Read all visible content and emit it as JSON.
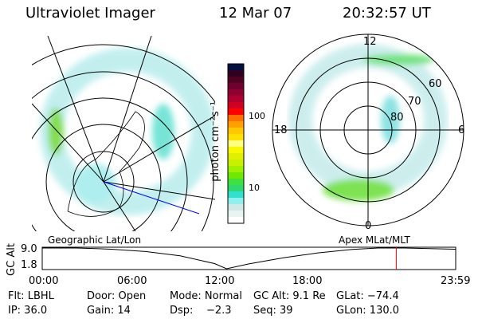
{
  "header": {
    "title": "Ultraviolet Imager",
    "date": "12 Mar 07",
    "time": "20:32:57 UT"
  },
  "colorbar": {
    "label": "photon cm⁻²s⁻¹",
    "ticks": [
      "100",
      "10"
    ],
    "colors": [
      "#001040",
      "#300020",
      "#500020",
      "#700030",
      "#900030",
      "#b00030",
      "#d00020",
      "#ff0000",
      "#ff7000",
      "#ffa000",
      "#ffc800",
      "#ffe000",
      "#ffff80",
      "#f8f800",
      "#e0f000",
      "#c8f000",
      "#a0f000",
      "#70e800",
      "#40e040",
      "#30d870",
      "#30e0d0",
      "#90f0f0",
      "#d0e8e8",
      "#e8f4f0",
      "#ffffff"
    ]
  },
  "polar": {
    "mlt_labels": [
      "12",
      "6",
      "0",
      "18"
    ],
    "lat_labels": [
      "60",
      "70",
      "80"
    ]
  },
  "plot": {
    "left_label": "Geographic Lat/Lon",
    "right_label": "Apex MLat/MLT",
    "ylabel": "GC Alt"
  },
  "chart_data": {
    "type": "line",
    "ylabel": "GC Alt",
    "yticks": [
      "9.0",
      "1.8"
    ],
    "ylim": [
      1.8,
      9.0
    ],
    "xticks": [
      "00:00",
      "06:00",
      "12:00",
      "18:00",
      "23:59"
    ],
    "xlim": [
      0,
      24
    ],
    "x": [
      0,
      2,
      4,
      6,
      8,
      10,
      10.7,
      12,
      14,
      16,
      18,
      19.5,
      21,
      23.98
    ],
    "values": [
      9.0,
      9.0,
      8.6,
      7.8,
      6.3,
      3.6,
      1.8,
      3.5,
      5.6,
      7.3,
      8.5,
      9.0,
      9.0,
      8.6
    ],
    "marker_time": 20.55,
    "marker_color": "#ff0000"
  },
  "info": {
    "flt": "Flt: LBHL",
    "door": "Door: Open",
    "mode": "Mode: Normal",
    "gcalt": "GC Alt: 9.1 Re",
    "glat": "GLat: −74.4",
    "ip": "IP: 36.0",
    "gain": "Gain: 14",
    "dsp": "Dsp:    −2.3",
    "seq": "Seq: 39",
    "glon": "GLon: 130.0"
  }
}
